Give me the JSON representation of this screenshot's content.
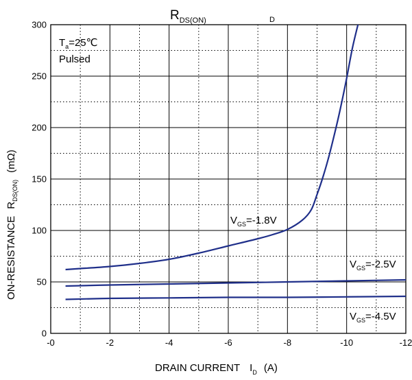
{
  "chart_data": {
    "type": "line",
    "title": {
      "main": "R",
      "sub": "DS(ON)",
      "right_sub": "D"
    },
    "xlabel": {
      "text": "DRAIN CURRENT",
      "symbol": "I",
      "symbol_sub": "D",
      "unit": "(A)"
    },
    "ylabel": {
      "text": "ON-RESISTANCE",
      "symbol": "R",
      "symbol_sub": "DS(ON)",
      "unit": "(mΩ)"
    },
    "x_ticks": [
      "-0",
      "-2",
      "-4",
      "-6",
      "-8",
      "-10",
      "-12"
    ],
    "y_ticks": [
      "0",
      "50",
      "100",
      "150",
      "200",
      "250",
      "300"
    ],
    "xlim": [
      0,
      -12
    ],
    "ylim": [
      0,
      300
    ],
    "grid": {
      "major": "solid",
      "minor": "dotted"
    },
    "conditions": {
      "line1": "T",
      "line1_sub": "a",
      "line1_rest": "=25℃",
      "line2": "Pulsed"
    },
    "color": "#1f2f8a",
    "series": [
      {
        "name": "V_GS=-1.8V",
        "label": {
          "prefix": "V",
          "sub": "GS",
          "value": "=-1.8V"
        },
        "x": [
          -0.5,
          -1,
          -2,
          -3,
          -4,
          -5,
          -6,
          -7,
          -7.5,
          -8,
          -8.5,
          -8.8,
          -9,
          -9.2,
          -9.4,
          -9.6,
          -9.8,
          -10,
          -10.2,
          -10.4
        ],
        "y": [
          62,
          63,
          65,
          68,
          72,
          78,
          85,
          92,
          96,
          101,
          110,
          120,
          135,
          152,
          172,
          195,
          220,
          248,
          278,
          302
        ]
      },
      {
        "name": "V_GS=-2.5V",
        "label": {
          "prefix": "V",
          "sub": "GS",
          "value": "=-2.5V"
        },
        "x": [
          -0.5,
          -2,
          -4,
          -6,
          -8,
          -10,
          -12
        ],
        "y": [
          46,
          47,
          48,
          49,
          50,
          51,
          52
        ]
      },
      {
        "name": "V_GS=-4.5V",
        "label": {
          "prefix": "V",
          "sub": "GS",
          "value": "=-4.5V"
        },
        "x": [
          -0.5,
          -2,
          -4,
          -6,
          -8,
          -10,
          -12
        ],
        "y": [
          33,
          34,
          34.5,
          35,
          35,
          35.5,
          36
        ]
      }
    ]
  }
}
